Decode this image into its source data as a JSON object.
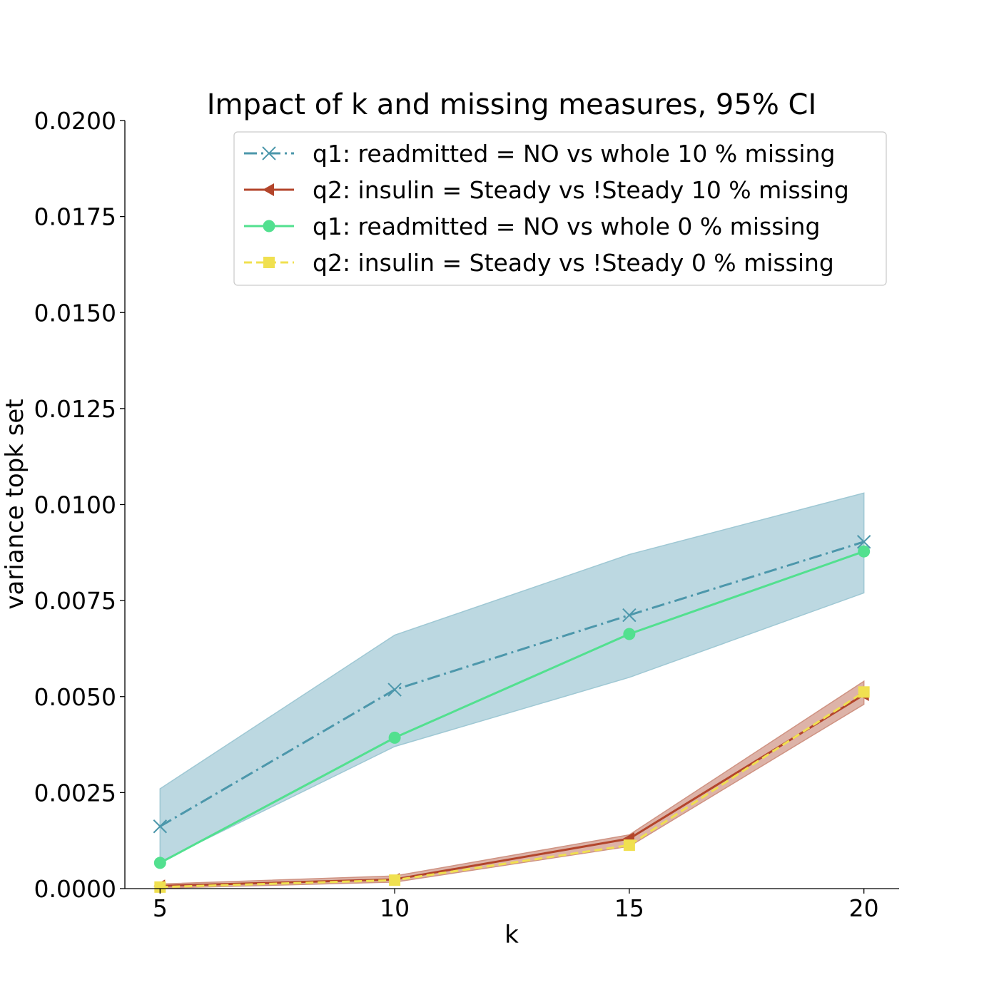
{
  "chart_data": {
    "type": "line",
    "title": "Impact of k and missing measures, 95% CI",
    "xlabel": "k",
    "ylabel": "variance topk set",
    "x": [
      5,
      10,
      15,
      20
    ],
    "xlim": [
      4.25,
      20.75
    ],
    "ylim": [
      0,
      0.02
    ],
    "xticks": [
      "5",
      "10",
      "15",
      "20"
    ],
    "yticks": [
      "0.0000",
      "0.0025",
      "0.0050",
      "0.0075",
      "0.0100",
      "0.0125",
      "0.0150",
      "0.0175",
      "0.0200"
    ],
    "grid": false,
    "legend_position": "top-right",
    "series": [
      {
        "name": "q1: readmitted = NO vs whole 10 % missing",
        "values": [
          0.00162,
          0.00518,
          0.00712,
          0.00903
        ],
        "ci_lower": [
          0.0007,
          0.0037,
          0.0055,
          0.0077
        ],
        "ci_upper": [
          0.0026,
          0.0066,
          0.0087,
          0.0103
        ],
        "color": "#4c97ab",
        "ci_color": "#9fc8d4",
        "linestyle": "dashdot",
        "marker": "x"
      },
      {
        "name": "q2: insulin = Steady vs !Steady 10 % missing",
        "values": [
          7e-05,
          0.00024,
          0.0013,
          0.00505
        ],
        "ci_lower": [
          1e-05,
          0.00017,
          0.0011,
          0.0048
        ],
        "ci_upper": [
          0.00012,
          0.00033,
          0.0014,
          0.0054
        ],
        "color": "#b3452b",
        "ci_color": "#cf9383",
        "linestyle": "solid",
        "marker": "triangle-left"
      },
      {
        "name": "q1: readmitted = NO vs whole 0 % missing",
        "values": [
          0.00067,
          0.00393,
          0.00663,
          0.00878
        ],
        "color": "#52e08f",
        "linestyle": "solid",
        "marker": "circle"
      },
      {
        "name": "q2: insulin = Steady vs !Steady 0 % missing",
        "values": [
          4e-05,
          0.00022,
          0.00113,
          0.00512
        ],
        "color": "#f0e050",
        "linestyle": "dashed",
        "marker": "square"
      }
    ]
  }
}
